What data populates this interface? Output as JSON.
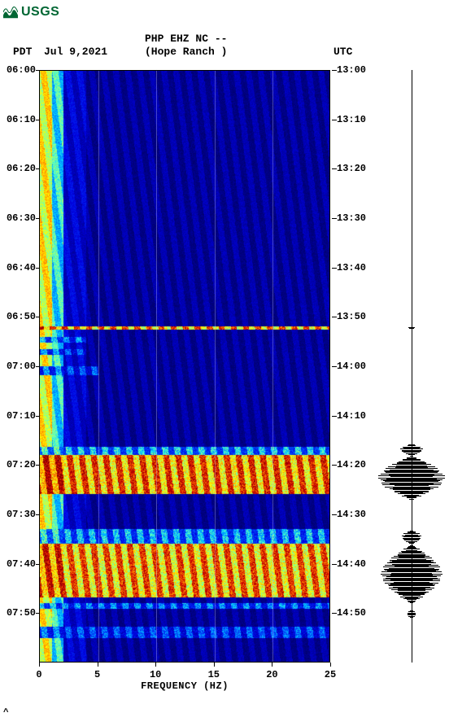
{
  "logo": {
    "text": "USGS",
    "color": "#006633"
  },
  "header": {
    "pdt": "PDT",
    "date": "Jul 9,2021",
    "station": "PHP EHZ NC --",
    "location": "(Hope Ranch )",
    "utc": "UTC"
  },
  "chart": {
    "type": "spectrogram",
    "bg_color": "#ffffff",
    "left_ticks": [
      "06:00",
      "06:10",
      "06:20",
      "06:30",
      "06:40",
      "06:50",
      "07:00",
      "07:10",
      "07:20",
      "07:30",
      "07:40",
      "07:50"
    ],
    "right_ticks": [
      "13:00",
      "13:10",
      "13:20",
      "13:30",
      "13:40",
      "13:50",
      "14:00",
      "14:10",
      "14:20",
      "14:30",
      "14:40",
      "14:50"
    ],
    "time_start_utc": 13.0,
    "time_end_utc": 15.0,
    "x_ticks": [
      0,
      5,
      10,
      15,
      20,
      25
    ],
    "xlim": [
      0,
      25
    ],
    "xlabel": "FREQUENCY (HZ)",
    "label_fontsize": 12,
    "tick_fontsize": 12,
    "colorscale": [
      {
        "v": 0.0,
        "c": "#000050"
      },
      {
        "v": 0.15,
        "c": "#000090"
      },
      {
        "v": 0.3,
        "c": "#0000e0"
      },
      {
        "v": 0.45,
        "c": "#0050ff"
      },
      {
        "v": 0.55,
        "c": "#00d0ff"
      },
      {
        "v": 0.62,
        "c": "#60ffc0"
      },
      {
        "v": 0.72,
        "c": "#ffff00"
      },
      {
        "v": 0.82,
        "c": "#ff8000"
      },
      {
        "v": 0.92,
        "c": "#d00000"
      },
      {
        "v": 1.0,
        "c": "#800000"
      }
    ],
    "base_intensity_rows": [
      {
        "t0": 13.0,
        "t1": 15.0,
        "low_hz_boost": 0.7,
        "bulk": 0.28
      }
    ],
    "events": [
      {
        "t0": 13.865,
        "t1": 13.875,
        "amp": 0.95,
        "full_band": true
      },
      {
        "t0": 13.9,
        "t1": 13.92,
        "amp": 0.55,
        "full_band": false,
        "hz_max": 4
      },
      {
        "t0": 13.94,
        "t1": 13.96,
        "amp": 0.5,
        "full_band": false,
        "hz_max": 4
      },
      {
        "t0": 14.0,
        "t1": 14.03,
        "amp": 0.5,
        "full_band": false,
        "hz_max": 5
      },
      {
        "t0": 14.27,
        "t1": 14.3,
        "amp": 0.62,
        "full_band": true
      },
      {
        "t0": 14.3,
        "t1": 14.43,
        "amp": 0.98,
        "full_band": true
      },
      {
        "t0": 14.55,
        "t1": 14.6,
        "amp": 0.6,
        "full_band": true
      },
      {
        "t0": 14.6,
        "t1": 14.78,
        "amp": 0.96,
        "full_band": true
      },
      {
        "t0": 14.8,
        "t1": 14.82,
        "amp": 0.55,
        "full_band": true
      },
      {
        "t0": 14.88,
        "t1": 14.92,
        "amp": 0.5,
        "full_band": true
      }
    ],
    "waveform_events": [
      {
        "t0": 13.865,
        "t1": 13.875,
        "amp": 0.12
      },
      {
        "t0": 14.26,
        "t1": 14.3,
        "amp": 0.35
      },
      {
        "t0": 14.3,
        "t1": 14.45,
        "amp": 0.98
      },
      {
        "t0": 14.55,
        "t1": 14.6,
        "amp": 0.3
      },
      {
        "t0": 14.6,
        "t1": 14.8,
        "amp": 0.9
      },
      {
        "t0": 14.82,
        "t1": 14.85,
        "amp": 0.15
      }
    ]
  },
  "footer_mark": "^"
}
